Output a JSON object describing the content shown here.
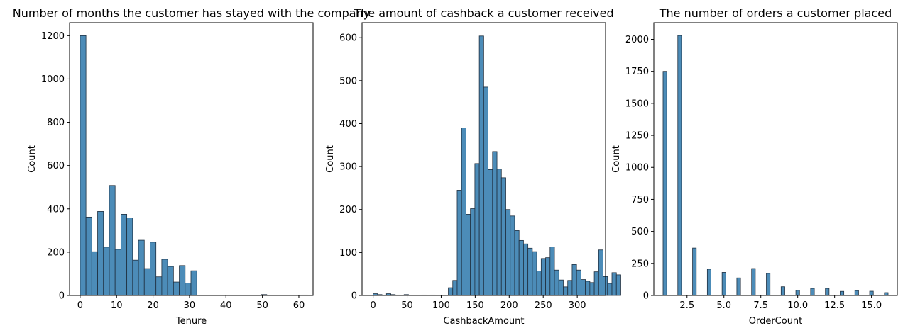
{
  "colors": {
    "bar": "#4c8cb8",
    "edge": "#1f2f3f"
  },
  "chart_data": [
    {
      "type": "bar",
      "title": "Number of months the customer has stayed with the company",
      "xlabel": "Tenure",
      "ylabel": "Count",
      "xlim": [
        -2.9,
        63.9
      ],
      "ylim": [
        0,
        1260
      ],
      "xticks": [
        0,
        10,
        20,
        30,
        40,
        50,
        60
      ],
      "yticks": [
        0,
        200,
        400,
        600,
        800,
        1000,
        1200
      ],
      "bin_width": 1.6,
      "bin_start": 0,
      "bins": [
        {
          "x0": 0.0,
          "x1": 1.6,
          "count": 1200
        },
        {
          "x0": 1.6,
          "x1": 3.2,
          "count": 362
        },
        {
          "x0": 3.2,
          "x1": 4.8,
          "count": 202
        },
        {
          "x0": 4.8,
          "x1": 6.4,
          "count": 388
        },
        {
          "x0": 6.4,
          "x1": 8.0,
          "count": 223
        },
        {
          "x0": 8.0,
          "x1": 9.6,
          "count": 508
        },
        {
          "x0": 9.6,
          "x1": 11.2,
          "count": 213
        },
        {
          "x0": 11.2,
          "x1": 12.8,
          "count": 375
        },
        {
          "x0": 12.8,
          "x1": 14.4,
          "count": 358
        },
        {
          "x0": 14.4,
          "x1": 16.0,
          "count": 163
        },
        {
          "x0": 16.0,
          "x1": 17.6,
          "count": 255
        },
        {
          "x0": 17.6,
          "x1": 19.2,
          "count": 124
        },
        {
          "x0": 19.2,
          "x1": 20.8,
          "count": 246
        },
        {
          "x0": 20.8,
          "x1": 22.4,
          "count": 86
        },
        {
          "x0": 22.4,
          "x1": 24.0,
          "count": 167
        },
        {
          "x0": 24.0,
          "x1": 25.6,
          "count": 134
        },
        {
          "x0": 25.6,
          "x1": 27.2,
          "count": 62
        },
        {
          "x0": 27.2,
          "x1": 28.8,
          "count": 138
        },
        {
          "x0": 28.8,
          "x1": 30.4,
          "count": 57
        },
        {
          "x0": 30.4,
          "x1": 32.0,
          "count": 114
        },
        {
          "x0": 49.6,
          "x1": 51.2,
          "count": 4
        },
        {
          "x0": 60.8,
          "x1": 62.4,
          "count": 2
        }
      ]
    },
    {
      "type": "bar",
      "title": "The amount of cashback a customer received",
      "xlabel": "CashbackAmount",
      "ylabel": "Count",
      "xlim": [
        -16.3,
        341.6
      ],
      "ylim": [
        0,
        635
      ],
      "xticks": [
        0,
        50,
        100,
        150,
        200,
        250,
        300
      ],
      "yticks": [
        0,
        100,
        200,
        300,
        400,
        500,
        600
      ],
      "bin_width": 6.5,
      "bin_start": 0,
      "counts": [
        4,
        2,
        1,
        4,
        2,
        1,
        0,
        2,
        0,
        0,
        0,
        1,
        0,
        1,
        0,
        0,
        0,
        18,
        35,
        245,
        390,
        189,
        202,
        307,
        604,
        485,
        293,
        335,
        294,
        274,
        200,
        185,
        151,
        128,
        120,
        110,
        102,
        57,
        86,
        88,
        113,
        59,
        36,
        20,
        35,
        72,
        59,
        37,
        33,
        30,
        55,
        106,
        44,
        28,
        53,
        48
      ]
    },
    {
      "type": "bar",
      "title": "The number of orders a customer placed",
      "xlabel": "OrderCount",
      "ylabel": "Count",
      "xlim": [
        0.25,
        16.75
      ],
      "ylim": [
        0,
        2130
      ],
      "xticks": [
        2.5,
        5.0,
        7.5,
        10.0,
        12.5,
        15.0
      ],
      "xtick_labels": [
        "2.5",
        "5.0",
        "7.5",
        "10.0",
        "12.5",
        "15.0"
      ],
      "yticks": [
        0,
        250,
        500,
        750,
        1000,
        1250,
        1500,
        1750,
        2000
      ],
      "bin_width": 0.25,
      "bins": [
        {
          "x": 1,
          "count": 1750
        },
        {
          "x": 2,
          "count": 2030
        },
        {
          "x": 3,
          "count": 370
        },
        {
          "x": 4,
          "count": 205
        },
        {
          "x": 5,
          "count": 180
        },
        {
          "x": 6,
          "count": 137
        },
        {
          "x": 7,
          "count": 210
        },
        {
          "x": 8,
          "count": 172
        },
        {
          "x": 9,
          "count": 68
        },
        {
          "x": 10,
          "count": 40
        },
        {
          "x": 11,
          "count": 55
        },
        {
          "x": 12,
          "count": 55
        },
        {
          "x": 13,
          "count": 32
        },
        {
          "x": 14,
          "count": 38
        },
        {
          "x": 15,
          "count": 33
        },
        {
          "x": 16,
          "count": 22
        }
      ]
    }
  ]
}
